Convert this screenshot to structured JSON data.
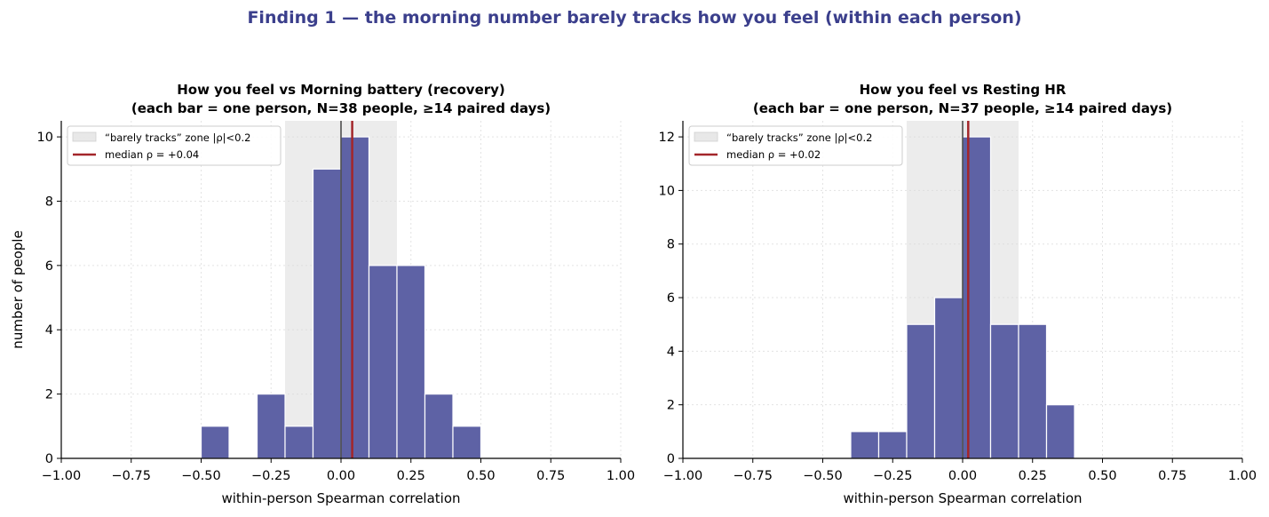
{
  "figure": {
    "title": "Finding 1 — the morning number barely tracks how you feel (within each person)"
  },
  "colors": {
    "bar": "#5e62a5",
    "bar_edge": "#ffffff",
    "median": "#a3262a",
    "zone": "#d9d9d9",
    "title": "#3b3f8c",
    "zero_line": "#444444"
  },
  "chart_data": [
    {
      "type": "bar",
      "title_lines": [
        "How you feel vs Morning battery (recovery)",
        "(each bar = one person, N=38 people, ≥14 paired days)"
      ],
      "xlabel": "within-person Spearman correlation",
      "ylabel": "number of people",
      "xlim": [
        -1.0,
        1.0
      ],
      "ylim": [
        0,
        10.5
      ],
      "xticks": [
        "−1.00",
        "−0.75",
        "−0.50",
        "−0.25",
        "0.00",
        "0.25",
        "0.50",
        "0.75",
        "1.00"
      ],
      "yticks": [
        "0",
        "2",
        "4",
        "6",
        "8",
        "10"
      ],
      "ytick_values": [
        0,
        2,
        4,
        6,
        8,
        10
      ],
      "bin_width": 0.1,
      "bins": [
        {
          "x0": -0.5,
          "value": 1
        },
        {
          "x0": -0.3,
          "value": 2
        },
        {
          "x0": -0.2,
          "value": 1
        },
        {
          "x0": -0.1,
          "value": 9
        },
        {
          "x0": 0.0,
          "value": 10
        },
        {
          "x0": 0.1,
          "value": 6
        },
        {
          "x0": 0.2,
          "value": 6
        },
        {
          "x0": 0.3,
          "value": 2
        },
        {
          "x0": 0.4,
          "value": 1
        }
      ],
      "zone": [
        -0.2,
        0.2
      ],
      "median": 0.04,
      "grid": true,
      "legend_position": "top-left",
      "legend": [
        "“barely tracks” zone |ρ|<0.2",
        "median ρ = +0.04"
      ]
    },
    {
      "type": "bar",
      "title_lines": [
        "How you feel vs Resting HR",
        "(each bar = one person, N=37 people, ≥14 paired days)"
      ],
      "xlabel": "within-person Spearman correlation",
      "ylabel": "",
      "xlim": [
        -1.0,
        1.0
      ],
      "ylim": [
        0,
        12.6
      ],
      "xticks": [
        "−1.00",
        "−0.75",
        "−0.50",
        "−0.25",
        "0.00",
        "0.25",
        "0.50",
        "0.75",
        "1.00"
      ],
      "yticks": [
        "0",
        "2",
        "4",
        "6",
        "8",
        "10",
        "12"
      ],
      "ytick_values": [
        0,
        2,
        4,
        6,
        8,
        10,
        12
      ],
      "bin_width": 0.1,
      "bins": [
        {
          "x0": -0.4,
          "value": 1
        },
        {
          "x0": -0.3,
          "value": 1
        },
        {
          "x0": -0.2,
          "value": 5
        },
        {
          "x0": -0.1,
          "value": 6
        },
        {
          "x0": 0.0,
          "value": 12
        },
        {
          "x0": 0.1,
          "value": 5
        },
        {
          "x0": 0.2,
          "value": 5
        },
        {
          "x0": 0.3,
          "value": 2
        }
      ],
      "zone": [
        -0.2,
        0.2
      ],
      "median": 0.02,
      "grid": true,
      "legend_position": "top-left",
      "legend": [
        "“barely tracks” zone |ρ|<0.2",
        "median ρ = +0.02"
      ]
    }
  ]
}
